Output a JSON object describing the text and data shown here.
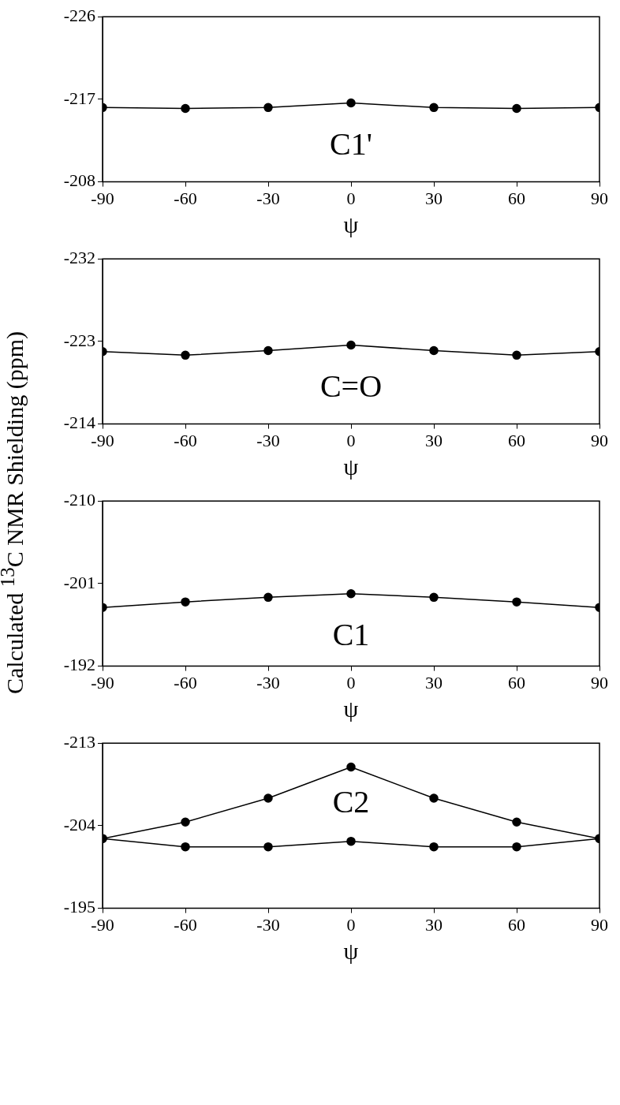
{
  "chart_data": [
    {
      "type": "line",
      "xlabel": "ψ",
      "annotations": [
        "C1'"
      ],
      "x": [
        -90,
        -60,
        -30,
        0,
        30,
        60,
        90
      ],
      "series": [
        {
          "color": "#000000",
          "values": [
            -216.1,
            -216.0,
            -216.1,
            -216.6,
            -216.1,
            -216.0,
            -216.1
          ]
        }
      ],
      "xlim": [
        -90,
        90
      ],
      "xticks": [
        -90,
        -60,
        -30,
        0,
        30,
        60,
        90
      ],
      "ylim": [
        -208,
        -226
      ],
      "yticks": [
        -226,
        -217,
        -208
      ],
      "grid": false,
      "legend": false,
      "marker": "circle",
      "line_style": "solid"
    },
    {
      "type": "line",
      "xlabel": "ψ",
      "annotations": [
        "C=O"
      ],
      "x": [
        -90,
        -60,
        -30,
        0,
        30,
        60,
        90
      ],
      "series": [
        {
          "color": "#000000",
          "values": [
            -221.9,
            -221.5,
            -222.0,
            -222.6,
            -222.0,
            -221.5,
            -221.9
          ]
        }
      ],
      "xlim": [
        -90,
        90
      ],
      "xticks": [
        -90,
        -60,
        -30,
        0,
        30,
        60,
        90
      ],
      "ylim": [
        -214,
        -232
      ],
      "yticks": [
        -232,
        -223,
        -214
      ],
      "grid": false,
      "legend": false,
      "marker": "circle",
      "line_style": "solid"
    },
    {
      "type": "line",
      "ylabel": "Calculated $^{13}$C NMR Shielding (ppm)",
      "xlabel": "ψ",
      "annotations": [
        "C1"
      ],
      "x": [
        -90,
        -60,
        -30,
        0,
        30,
        60,
        90
      ],
      "series": [
        {
          "color": "#000000",
          "values": [
            -198.4,
            -199.0,
            -199.5,
            -199.9,
            -199.5,
            -199.0,
            -198.4
          ]
        }
      ],
      "xlim": [
        -90,
        90
      ],
      "xticks": [
        -90,
        -60,
        -30,
        0,
        30,
        60,
        90
      ],
      "ylim": [
        -192,
        -210
      ],
      "yticks": [
        -210,
        -201,
        -192
      ],
      "grid": false,
      "legend": false,
      "marker": "circle",
      "line_style": "solid"
    },
    {
      "type": "line",
      "xlabel": "ψ",
      "annotations": [
        "C2"
      ],
      "x": [
        -90,
        -60,
        -30,
        0,
        30,
        60,
        90
      ],
      "series": [
        {
          "color": "#000000",
          "values": [
            -202.6,
            -204.4,
            -207.0,
            -210.4,
            -207.0,
            -204.4,
            -202.6
          ]
        },
        {
          "color": "#000000",
          "values": [
            -202.6,
            -201.7,
            -201.7,
            -202.3,
            -201.7,
            -201.7,
            -202.6
          ]
        }
      ],
      "xlim": [
        -90,
        90
      ],
      "xticks": [
        -90,
        -60,
        -30,
        0,
        30,
        60,
        90
      ],
      "ylim": [
        -195,
        -213
      ],
      "yticks": [
        -213,
        -204,
        -195
      ],
      "grid": false,
      "legend": false,
      "marker": "circle",
      "line_style": "solid"
    }
  ]
}
